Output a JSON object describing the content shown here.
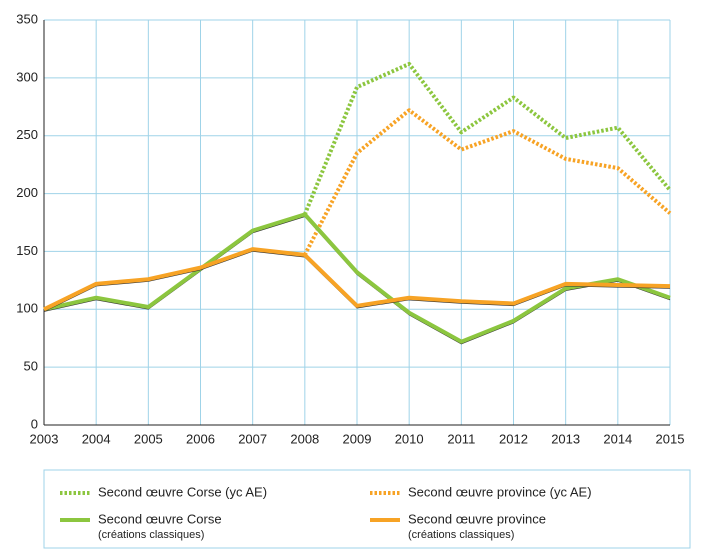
{
  "chart_data": {
    "type": "line",
    "categories": [
      "2003",
      "2004",
      "2005",
      "2006",
      "2007",
      "2008",
      "2009",
      "2010",
      "2011",
      "2012",
      "2013",
      "2014",
      "2015"
    ],
    "series": [
      {
        "name": "Second œuvre Corse (yc AE)",
        "color": "#8cc63f",
        "dash": true,
        "values": [
          null,
          null,
          null,
          null,
          null,
          182,
          292,
          312,
          253,
          283,
          248,
          257,
          203
        ]
      },
      {
        "name": "Second œuvre province (yc AE)",
        "color": "#f7a325",
        "dash": true,
        "values": [
          null,
          null,
          null,
          null,
          null,
          147,
          235,
          272,
          238,
          254,
          230,
          222,
          183
        ]
      },
      {
        "name": "Second œuvre Corse",
        "legend_note": "(créations classiques)",
        "color": "#8cc63f",
        "dash": false,
        "values": [
          100,
          110,
          102,
          135,
          168,
          182,
          132,
          97,
          72,
          90,
          118,
          126,
          110
        ]
      },
      {
        "name": "Second œuvre province",
        "legend_note": "(créations classiques)",
        "color": "#f7a325",
        "dash": false,
        "values": [
          100,
          122,
          126,
          136,
          152,
          147,
          103,
          110,
          107,
          105,
          122,
          121,
          120
        ]
      }
    ],
    "ylim": [
      0,
      350
    ],
    "yticks": [
      0,
      50,
      100,
      150,
      200,
      250,
      300,
      350
    ],
    "grid": true
  }
}
